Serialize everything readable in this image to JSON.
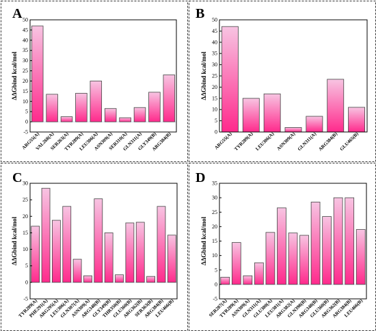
{
  "figure": {
    "panels": [
      "A",
      "B",
      "C",
      "D"
    ]
  },
  "colors": {
    "bar_top": "#f7c4e2",
    "bar_bottom": "#ff2a8c",
    "bar_stroke": "#444444",
    "panel_border": "#333333",
    "zero_line": "#cfe3ef"
  },
  "chart_data": [
    {
      "panel": "A",
      "type": "bar",
      "ylabel": "ΔΔGbind kcal/mol",
      "ylim": [
        -5,
        50
      ],
      "yticks": [
        -5,
        0,
        5,
        10,
        15,
        20,
        25,
        30,
        35,
        40,
        45,
        50
      ],
      "categories": [
        "ARG55(A)",
        "VAL268(A)",
        "SER263(A)",
        "TYR289(A)",
        "LEU306(A)",
        "ASN309(A)",
        "SER310(A)",
        "GLN311(A)",
        "GLY349(B)",
        "ARG384(B)"
      ],
      "values": [
        47,
        13.5,
        2.5,
        14,
        20,
        6.5,
        2,
        7,
        14.5,
        23
      ]
    },
    {
      "panel": "B",
      "type": "bar",
      "ylabel": "ΔΔGbind kcal/mol",
      "ylim": [
        0,
        50
      ],
      "yticks": [
        0,
        5,
        10,
        15,
        20,
        25,
        30,
        35,
        40,
        45,
        50
      ],
      "categories": [
        "ARG55(A)",
        "TYR289(A)",
        "LEU306(A)",
        "ASN309(A)",
        "GLN311(A)",
        "ARG384(B)",
        "GLU465(B)"
      ],
      "values": [
        47,
        15,
        17,
        2,
        7,
        23.5,
        11
      ]
    },
    {
      "panel": "C",
      "type": "bar",
      "ylabel": "ΔΔGbind kcal/mol",
      "ylim": [
        -5,
        30
      ],
      "yticks": [
        -5,
        0,
        5,
        10,
        15,
        20,
        25,
        30
      ],
      "categories": [
        "TYR289(A)",
        "PHE291(A)",
        "ARG295(A)",
        "LEU306(A)",
        "GLN307(A)",
        "ASN309(A)",
        "ARG348(B)",
        "GLY349(B)",
        "THR350(B)",
        "GLU360(B)",
        "ARG362(B)",
        "SER363(B)",
        "ARG384(B)",
        "LEU466(B)"
      ],
      "values": [
        17,
        28.5,
        18.8,
        23,
        7,
        2,
        25.3,
        15,
        2.3,
        18,
        18.2,
        1.8,
        23,
        14.3
      ]
    },
    {
      "panel": "D",
      "type": "bar",
      "ylabel": "ΔΔGbind kcal/mol",
      "ylim": [
        -5,
        35
      ],
      "yticks": [
        -5,
        0,
        5,
        10,
        15,
        20,
        25,
        30,
        35
      ],
      "categories": [
        "SER287(A)",
        "TYR289(A)",
        "ASN309(A)",
        "GLN311(A)",
        "GLU380(A)",
        "LEU381(A)",
        "ARG382(A)",
        "GLN398(B)",
        "ARG348(B)",
        "GLU360(B)",
        "ARG362(B)",
        "ARG384(B)",
        "LEU466(B)"
      ],
      "values": [
        2.5,
        14.5,
        3,
        7.5,
        18,
        26.5,
        17.8,
        17,
        28.5,
        23.5,
        30,
        30,
        19
      ]
    }
  ]
}
